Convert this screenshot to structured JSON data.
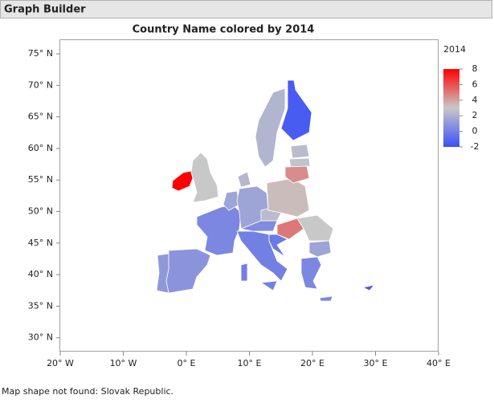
{
  "header": {
    "title": "Graph Builder"
  },
  "chart_data": {
    "type": "map",
    "title": "Country Name colored by 2014",
    "values": [
      8,
      3,
      0.3,
      0.8,
      1,
      1.5,
      1.5,
      2.3,
      0,
      0.5,
      2.5,
      3.3,
      5,
      -0.3,
      3,
      1.5,
      0.3,
      2.2,
      -1.5,
      2.5,
      2.8,
      4.5,
      -1.5
    ],
    "xlim": [
      -20,
      40
    ],
    "xticks": [
      {
        "value": -20,
        "label": "20° W"
      },
      {
        "value": -10,
        "label": "10° W"
      },
      {
        "value": 0,
        "label": "0° E"
      },
      {
        "value": 10,
        "label": "10° E"
      },
      {
        "value": 20,
        "label": "20° E"
      },
      {
        "value": 30,
        "label": "30° E"
      },
      {
        "value": 40,
        "label": "40° E"
      }
    ],
    "ylim": [
      27.8,
      77.3
    ],
    "yticks": [
      {
        "value": 30,
        "label": "30° N"
      },
      {
        "value": 35,
        "label": "35° N"
      },
      {
        "value": 40,
        "label": "40° N"
      },
      {
        "value": 45,
        "label": "45° N"
      },
      {
        "value": 50,
        "label": "50° N"
      },
      {
        "value": 55,
        "label": "55° N"
      },
      {
        "value": 60,
        "label": "60° N"
      },
      {
        "value": 65,
        "label": "65° N"
      },
      {
        "value": 70,
        "label": "70° N"
      },
      {
        "value": 75,
        "label": "75° N"
      }
    ],
    "legend_title": "2014",
    "clim": [
      -2,
      8
    ],
    "cticks": [
      8,
      6,
      4,
      2,
      0,
      -2
    ],
    "colors": [
      "#3a50f5",
      "#c8c8c8",
      "#ff0000"
    ],
    "note": "Map shape not found: Slovak Republic."
  }
}
